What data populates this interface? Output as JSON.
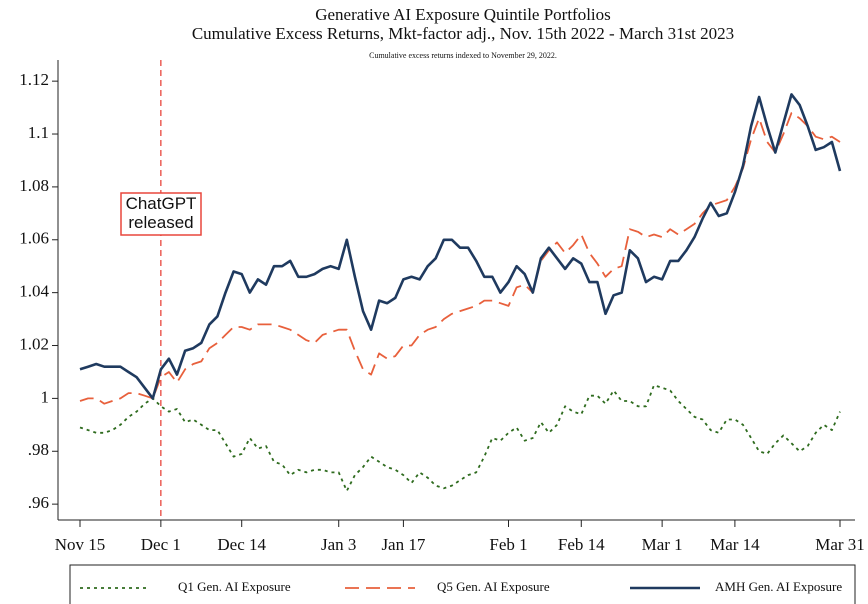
{
  "chart_data": {
    "type": "line",
    "title": "Generative AI Exposure Quintile Portfolios",
    "subtitle": "Cumulative Excess Returns, Mkt-factor adj., Nov. 15th 2022 - March 31st 2023",
    "note": "Cumulative excess returns indexed to November 29, 2022.",
    "categories": [
      "Nov 15",
      null,
      null,
      null,
      null,
      null,
      null,
      null,
      null,
      null,
      "Dec 1",
      null,
      null,
      null,
      null,
      null,
      null,
      null,
      null,
      null,
      "Dec 14",
      null,
      null,
      null,
      null,
      null,
      null,
      null,
      null,
      null,
      null,
      null,
      "Jan 3",
      null,
      null,
      null,
      null,
      null,
      null,
      null,
      "Jan 17",
      null,
      null,
      null,
      null,
      null,
      null,
      null,
      null,
      null,
      null,
      null,
      null,
      "Feb 1",
      null,
      null,
      null,
      null,
      null,
      null,
      null,
      null,
      "Feb 14",
      null,
      null,
      null,
      null,
      null,
      null,
      null,
      null,
      null,
      "Mar 1",
      null,
      null,
      null,
      null,
      null,
      null,
      null,
      null,
      "Mar 14",
      null,
      null,
      null,
      null,
      null,
      null,
      null,
      null,
      null,
      null,
      null,
      null,
      "Mar 31"
    ],
    "series": [
      {
        "name": "Q1 Gen. AI Exposure",
        "color": "#2e6b1e",
        "dash": "3 4",
        "values": [
          0.989,
          0.988,
          0.987,
          0.987,
          0.988,
          0.99,
          0.993,
          0.995,
          0.998,
          1.0,
          0.997,
          0.995,
          0.996,
          0.991,
          0.992,
          0.99,
          0.988,
          0.988,
          0.983,
          0.978,
          0.979,
          0.985,
          0.981,
          0.982,
          0.976,
          0.975,
          0.971,
          0.973,
          0.972,
          0.973,
          0.973,
          0.972,
          0.972,
          0.965,
          0.971,
          0.974,
          0.978,
          0.976,
          0.974,
          0.973,
          0.971,
          0.968,
          0.972,
          0.97,
          0.967,
          0.966,
          0.967,
          0.969,
          0.971,
          0.972,
          0.978,
          0.985,
          0.984,
          0.987,
          0.989,
          0.984,
          0.985,
          0.991,
          0.987,
          0.99,
          0.997,
          0.995,
          0.994,
          1.001,
          1.001,
          0.998,
          1.003,
          0.999,
          0.999,
          0.997,
          0.997,
          1.005,
          1.004,
          1.003,
          0.999,
          0.996,
          0.993,
          0.992,
          0.988,
          0.987,
          0.992,
          0.992,
          0.99,
          0.985,
          0.98,
          0.979,
          0.983,
          0.986,
          0.983,
          0.98,
          0.982,
          0.987,
          0.99,
          0.988,
          0.995
        ]
      },
      {
        "name": "Q5 Gen. AI Exposure",
        "color": "#e8603c",
        "dash": "14 7",
        "values": [
          0.999,
          1.0,
          1.0,
          0.998,
          0.999,
          1.0,
          1.002,
          1.002,
          1.001,
          1.0,
          1.008,
          1.01,
          1.006,
          1.011,
          1.013,
          1.014,
          1.019,
          1.021,
          1.024,
          1.027,
          1.027,
          1.026,
          1.028,
          1.028,
          1.028,
          1.027,
          1.026,
          1.024,
          1.022,
          1.021,
          1.024,
          1.025,
          1.026,
          1.026,
          1.018,
          1.011,
          1.009,
          1.017,
          1.015,
          1.016,
          1.02,
          1.02,
          1.024,
          1.026,
          1.027,
          1.03,
          1.032,
          1.033,
          1.034,
          1.035,
          1.037,
          1.037,
          1.036,
          1.035,
          1.042,
          1.043,
          1.04,
          1.052,
          1.056,
          1.059,
          1.055,
          1.058,
          1.062,
          1.055,
          1.051,
          1.046,
          1.049,
          1.05,
          1.064,
          1.063,
          1.061,
          1.062,
          1.061,
          1.064,
          1.062,
          1.064,
          1.066,
          1.07,
          1.073,
          1.074,
          1.075,
          1.08,
          1.087,
          1.098,
          1.106,
          1.097,
          1.093,
          1.1,
          1.108,
          1.106,
          1.103,
          1.099,
          1.098,
          1.099,
          1.097
        ]
      },
      {
        "name": "AMH Gen. AI Exposure",
        "color": "#1f3a5f",
        "dash": "",
        "values": [
          1.011,
          1.012,
          1.013,
          1.012,
          1.012,
          1.012,
          1.01,
          1.008,
          1.004,
          1.0,
          1.011,
          1.015,
          1.009,
          1.018,
          1.019,
          1.021,
          1.028,
          1.031,
          1.04,
          1.048,
          1.047,
          1.04,
          1.045,
          1.043,
          1.05,
          1.05,
          1.052,
          1.046,
          1.046,
          1.047,
          1.049,
          1.05,
          1.049,
          1.06,
          1.046,
          1.033,
          1.026,
          1.037,
          1.036,
          1.038,
          1.045,
          1.046,
          1.045,
          1.05,
          1.053,
          1.06,
          1.06,
          1.057,
          1.057,
          1.052,
          1.046,
          1.046,
          1.04,
          1.044,
          1.05,
          1.047,
          1.04,
          1.053,
          1.057,
          1.053,
          1.049,
          1.053,
          1.051,
          1.044,
          1.044,
          1.032,
          1.039,
          1.04,
          1.056,
          1.053,
          1.044,
          1.046,
          1.045,
          1.052,
          1.052,
          1.056,
          1.061,
          1.068,
          1.074,
          1.069,
          1.07,
          1.078,
          1.088,
          1.103,
          1.114,
          1.103,
          1.093,
          1.104,
          1.115,
          1.111,
          1.103,
          1.094,
          1.095,
          1.097,
          1.086
        ]
      }
    ],
    "ylim": [
      0.954,
      1.128
    ],
    "yticks": [
      {
        "value": 0.96,
        "label": ".96"
      },
      {
        "value": 0.98,
        "label": ".98"
      },
      1,
      1.02,
      1.04,
      1.06,
      1.08,
      1.1,
      1.12
    ],
    "grid": false,
    "legend": "bottom",
    "annotations": [
      {
        "text": [
          "ChatGPT",
          "released"
        ],
        "x": "Dec 1",
        "color": "#e8463c"
      }
    ]
  }
}
